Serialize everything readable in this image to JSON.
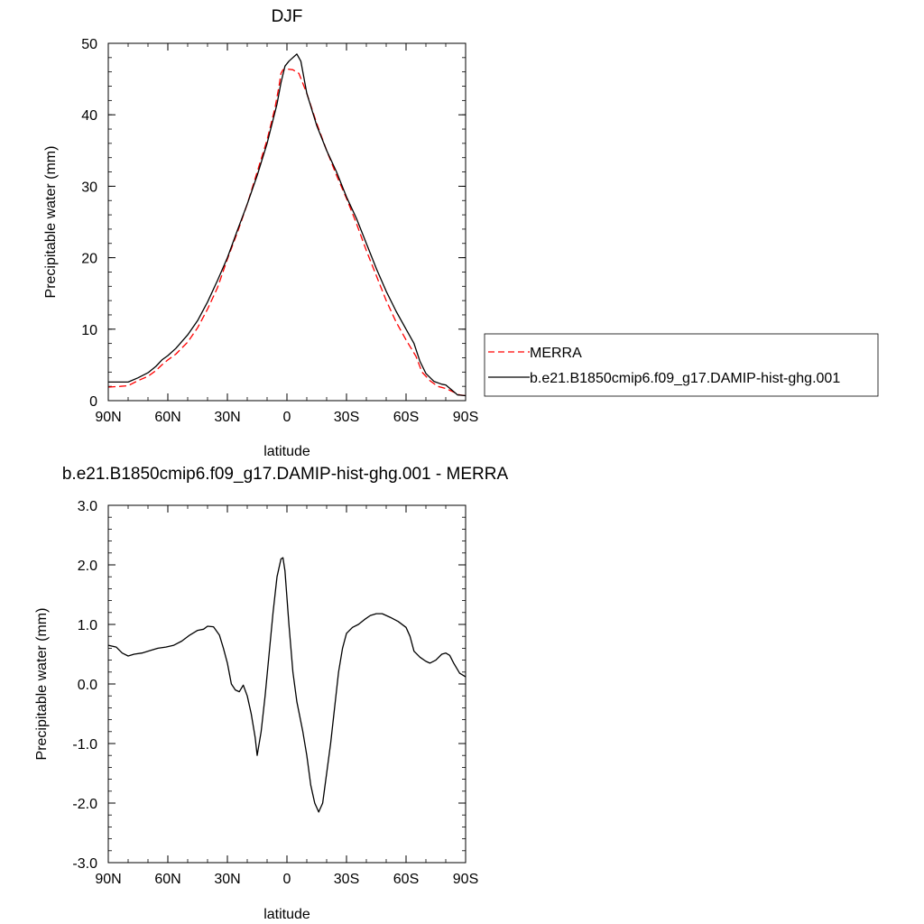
{
  "legend": {
    "placement": "right of top panel",
    "entries": [
      {
        "label": "MERRA",
        "color": "#ff0000",
        "dash": "dashed"
      },
      {
        "label": "b.e21.B1850cmip6.f09_g17.DAMIP-hist-ghg.001",
        "color": "#000000",
        "dash": "solid"
      }
    ]
  },
  "chart_data": [
    {
      "type": "line",
      "title": "DJF",
      "xlabel": "latitude",
      "ylabel": "Precipitable water (mm)",
      "xlim": [
        90,
        -90
      ],
      "ylim": [
        0,
        50
      ],
      "xticks": [
        {
          "value": 90,
          "label": "90N"
        },
        {
          "value": 60,
          "label": "60N"
        },
        {
          "value": 30,
          "label": "30N"
        },
        {
          "value": 0,
          "label": "0"
        },
        {
          "value": -30,
          "label": "30S"
        },
        {
          "value": -60,
          "label": "60S"
        },
        {
          "value": -90,
          "label": "90S"
        }
      ],
      "yticks": [
        {
          "value": 0,
          "label": "0"
        },
        {
          "value": 10,
          "label": "10"
        },
        {
          "value": 20,
          "label": "20"
        },
        {
          "value": 30,
          "label": "30"
        },
        {
          "value": 40,
          "label": "40"
        },
        {
          "value": 50,
          "label": "50"
        }
      ],
      "grid": false,
      "series": [
        {
          "name": "MERRA",
          "color": "#ff0000",
          "dash": "dashed",
          "points": [
            [
              90,
              1.9
            ],
            [
              84,
              2.0
            ],
            [
              80,
              2.1
            ],
            [
              75,
              2.8
            ],
            [
              70,
              3.4
            ],
            [
              66,
              4.2
            ],
            [
              63,
              5.0
            ],
            [
              60,
              5.7
            ],
            [
              56,
              6.5
            ],
            [
              50,
              8.2
            ],
            [
              45,
              10.2
            ],
            [
              40,
              12.8
            ],
            [
              35,
              15.8
            ],
            [
              30,
              19.8
            ],
            [
              25,
              23.5
            ],
            [
              20,
              27.5
            ],
            [
              15,
              32.0
            ],
            [
              10,
              36.5
            ],
            [
              6,
              41.0
            ],
            [
              4,
              44.0
            ],
            [
              3,
              45.8
            ],
            [
              2,
              46.3
            ],
            [
              0,
              46.4
            ],
            [
              -3,
              46.3
            ],
            [
              -6,
              45.8
            ],
            [
              -10,
              43.0
            ],
            [
              -15,
              38.8
            ],
            [
              -20,
              35.0
            ],
            [
              -25,
              31.5
            ],
            [
              -30,
              28.3
            ],
            [
              -35,
              24.8
            ],
            [
              -40,
              21.0
            ],
            [
              -45,
              17.5
            ],
            [
              -50,
              14.0
            ],
            [
              -55,
              11.0
            ],
            [
              -60,
              8.5
            ],
            [
              -65,
              6.2
            ],
            [
              -68,
              4.0
            ],
            [
              -72,
              2.8
            ],
            [
              -76,
              2.0
            ],
            [
              -80,
              1.7
            ],
            [
              -84,
              1.2
            ],
            [
              -87,
              0.8
            ],
            [
              -90,
              0.7
            ]
          ]
        },
        {
          "name": "b.e21.B1850cmip6.f09_g17.DAMIP-hist-ghg.001",
          "color": "#000000",
          "dash": "solid",
          "points": [
            [
              90,
              2.6
            ],
            [
              84,
              2.6
            ],
            [
              80,
              2.6
            ],
            [
              75,
              3.2
            ],
            [
              70,
              3.9
            ],
            [
              66,
              4.8
            ],
            [
              63,
              5.7
            ],
            [
              60,
              6.3
            ],
            [
              56,
              7.3
            ],
            [
              50,
              9.2
            ],
            [
              45,
              11.2
            ],
            [
              40,
              13.8
            ],
            [
              35,
              16.8
            ],
            [
              30,
              20.0
            ],
            [
              25,
              23.8
            ],
            [
              20,
              27.5
            ],
            [
              15,
              31.5
            ],
            [
              10,
              36.0
            ],
            [
              5,
              41.5
            ],
            [
              3,
              44.5
            ],
            [
              1,
              46.8
            ],
            [
              -1,
              47.5
            ],
            [
              -3,
              48.0
            ],
            [
              -5,
              48.5
            ],
            [
              -7,
              47.5
            ],
            [
              -10,
              43.0
            ],
            [
              -15,
              38.5
            ],
            [
              -20,
              35.0
            ],
            [
              -25,
              32.0
            ],
            [
              -30,
              28.5
            ],
            [
              -35,
              25.5
            ],
            [
              -40,
              22.0
            ],
            [
              -45,
              18.5
            ],
            [
              -50,
              15.3
            ],
            [
              -55,
              12.5
            ],
            [
              -60,
              10.0
            ],
            [
              -64,
              8.0
            ],
            [
              -67,
              5.5
            ],
            [
              -70,
              3.8
            ],
            [
              -74,
              2.7
            ],
            [
              -78,
              2.3
            ],
            [
              -80,
              2.2
            ],
            [
              -83,
              1.5
            ],
            [
              -86,
              0.8
            ],
            [
              -90,
              0.7
            ]
          ]
        }
      ]
    },
    {
      "type": "line",
      "title": "b.e21.B1850cmip6.f09_g17.DAMIP-hist-ghg.001 - MERRA",
      "xlabel": "latitude",
      "ylabel": "Precipitable water (mm)",
      "xlim": [
        90,
        -90
      ],
      "ylim": [
        -3.0,
        3.0
      ],
      "xticks": [
        {
          "value": 90,
          "label": "90N"
        },
        {
          "value": 60,
          "label": "60N"
        },
        {
          "value": 30,
          "label": "30N"
        },
        {
          "value": 0,
          "label": "0"
        },
        {
          "value": -30,
          "label": "30S"
        },
        {
          "value": -60,
          "label": "60S"
        },
        {
          "value": -90,
          "label": "90S"
        }
      ],
      "yticks": [
        {
          "value": 3.0,
          "label": "3.0"
        },
        {
          "value": 2.0,
          "label": "2.0"
        },
        {
          "value": 1.0,
          "label": "1.0"
        },
        {
          "value": 0.0,
          "label": "0.0"
        },
        {
          "value": -1.0,
          "label": "-1.0"
        },
        {
          "value": -2.0,
          "label": "-2.0"
        },
        {
          "value": -3.0,
          "label": "-3.0"
        }
      ],
      "grid": false,
      "series": [
        {
          "color": "#000000",
          "dash": "solid",
          "points": [
            [
              90,
              0.65
            ],
            [
              86,
              0.62
            ],
            [
              83,
              0.52
            ],
            [
              80,
              0.47
            ],
            [
              77,
              0.5
            ],
            [
              73,
              0.52
            ],
            [
              69,
              0.56
            ],
            [
              65,
              0.6
            ],
            [
              61,
              0.62
            ],
            [
              57,
              0.65
            ],
            [
              53,
              0.72
            ],
            [
              49,
              0.82
            ],
            [
              45,
              0.9
            ],
            [
              42,
              0.92
            ],
            [
              40,
              0.97
            ],
            [
              37,
              0.96
            ],
            [
              34,
              0.82
            ],
            [
              32,
              0.6
            ],
            [
              30,
              0.35
            ],
            [
              28,
              0.0
            ],
            [
              26,
              -0.1
            ],
            [
              24,
              -0.13
            ],
            [
              22,
              -0.02
            ],
            [
              20,
              -0.2
            ],
            [
              18,
              -0.5
            ],
            [
              16,
              -0.9
            ],
            [
              15,
              -1.2
            ],
            [
              13,
              -0.8
            ],
            [
              11,
              -0.2
            ],
            [
              9,
              0.5
            ],
            [
              7,
              1.2
            ],
            [
              5,
              1.8
            ],
            [
              3,
              2.1
            ],
            [
              2,
              2.12
            ],
            [
              1,
              1.9
            ],
            [
              -1,
              1.0
            ],
            [
              -3,
              0.2
            ],
            [
              -5,
              -0.3
            ],
            [
              -8,
              -0.8
            ],
            [
              -10,
              -1.2
            ],
            [
              -12,
              -1.7
            ],
            [
              -14,
              -2.0
            ],
            [
              -16,
              -2.15
            ],
            [
              -18,
              -2.0
            ],
            [
              -20,
              -1.5
            ],
            [
              -22,
              -1.0
            ],
            [
              -24,
              -0.4
            ],
            [
              -26,
              0.2
            ],
            [
              -28,
              0.6
            ],
            [
              -30,
              0.85
            ],
            [
              -33,
              0.95
            ],
            [
              -36,
              1.0
            ],
            [
              -39,
              1.08
            ],
            [
              -42,
              1.15
            ],
            [
              -45,
              1.18
            ],
            [
              -48,
              1.18
            ],
            [
              -52,
              1.12
            ],
            [
              -56,
              1.05
            ],
            [
              -60,
              0.95
            ],
            [
              -62,
              0.8
            ],
            [
              -64,
              0.55
            ],
            [
              -67,
              0.45
            ],
            [
              -70,
              0.38
            ],
            [
              -72,
              0.35
            ],
            [
              -75,
              0.4
            ],
            [
              -78,
              0.5
            ],
            [
              -80,
              0.52
            ],
            [
              -82,
              0.48
            ],
            [
              -84,
              0.35
            ],
            [
              -87,
              0.18
            ],
            [
              -90,
              0.12
            ]
          ]
        }
      ]
    }
  ]
}
